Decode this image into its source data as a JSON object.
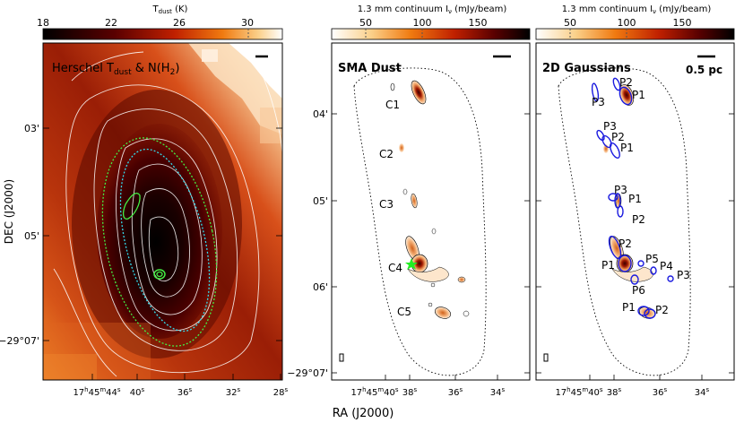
{
  "chart_data": [
    {
      "type": "heatmap",
      "id": "left",
      "title": "Herschel T_dust & N(H2)",
      "colorbar": {
        "label": "Tdust (K)",
        "ticks": [
          18,
          22,
          26,
          30
        ],
        "range": [
          18,
          32
        ],
        "cmap": "gist_heat"
      },
      "xlabel": "RA (J2000)",
      "ylabel": "DEC (J2000)",
      "xticks": [
        "17h45m44s",
        "40s",
        "36s",
        "32s",
        "28s"
      ],
      "yticks": [
        "03'",
        "05'",
        "-29°07'"
      ],
      "scalebar": "0.5 pc"
    },
    {
      "type": "heatmap",
      "id": "middle",
      "title": "SMA Dust",
      "colorbar": {
        "label": "1.3 mm continuum I_ν (mJy/beam)",
        "ticks": [
          50,
          100,
          150
        ],
        "range": [
          20,
          200
        ],
        "cmap": "gist_heat_r"
      },
      "xticks": [
        "17h45m40s",
        "38s",
        "36s",
        "34s"
      ],
      "yticks": [
        "04'",
        "05'",
        "06'",
        "-29°07'"
      ],
      "clumps": [
        "C1",
        "C2",
        "C3",
        "C4",
        "C5"
      ]
    },
    {
      "type": "heatmap",
      "id": "right",
      "title": "2D Gaussians",
      "colorbar": {
        "label": "1.3 mm continuum I_ν (mJy/beam)",
        "ticks": [
          50,
          100,
          150
        ],
        "range": [
          20,
          200
        ],
        "cmap": "gist_heat_r"
      },
      "xticks": [
        "17h45m40s",
        "38s",
        "36s",
        "34s"
      ],
      "scalebar": "0.5 pc",
      "sources": [
        {
          "group": "C1",
          "labels": [
            "P1",
            "P2",
            "P3"
          ]
        },
        {
          "group": "C2",
          "labels": [
            "P1",
            "P2",
            "P3"
          ]
        },
        {
          "group": "C3",
          "labels": [
            "P1",
            "P2",
            "P3"
          ]
        },
        {
          "group": "C4",
          "labels": [
            "P1",
            "P2",
            "P3",
            "P4",
            "P5",
            "P6"
          ]
        },
        {
          "group": "C5",
          "labels": [
            "P1",
            "P2"
          ]
        }
      ]
    }
  ],
  "labels": {
    "cb_left_title": "T",
    "cb_left_sub": "dust",
    "cb_left_unit": " (K)",
    "cb_mid_title": "1.3 mm continuum I",
    "cb_mid_sub": "ν",
    "cb_mid_unit": " (mJy/beam)",
    "cb_right_title": "1.3 mm continuum I",
    "cb_right_sub": "ν",
    "cb_right_unit": " (mJy/beam)",
    "left_title_a": "Herschel T",
    "left_title_sub": "dust",
    "left_title_b": " & N(H",
    "left_title_sub2": "2",
    "left_title_c": ")",
    "mid_title": "SMA Dust",
    "right_title": "2D Gaussians",
    "scalebar": "0.5 pc",
    "ylabel": "DEC (J2000)",
    "xlabel": "RA (J2000)",
    "cb_t18": "18",
    "cb_t22": "22",
    "cb_t26": "26",
    "cb_t30": "30",
    "cb_m50": "50",
    "cb_m100": "100",
    "cb_m150": "150",
    "cb_r50": "50",
    "cb_r100": "100",
    "cb_r150": "150",
    "ly03": "03'",
    "ly05": "05'",
    "ly07": "−29°07'",
    "lx_h": "17",
    "lx_hs": "h",
    "lx_m": "45",
    "lx_ms": "m",
    "lx_s": "44",
    "lx_ss": "s",
    "lx40": "40",
    "lx40s": "s",
    "lx36": "36",
    "lx36s": "s",
    "lx32": "32",
    "lx32s": "s",
    "lx28": "28",
    "lx28s": "s",
    "my04": "04'",
    "my05": "05'",
    "my06": "06'",
    "my07": "−29°07'",
    "mx_h": "17",
    "mx_hs": "h",
    "mx_m": "45",
    "mx_ms": "m",
    "mx_s": "40",
    "mx_ss": "s",
    "mx38": "38",
    "mx38s": "s",
    "mx36": "36",
    "mx36s": "s",
    "mx34": "34",
    "mx34s": "s",
    "rx_h": "17",
    "rx_hs": "h",
    "rx_m": "45",
    "rx_ms": "m",
    "rx_s": "40",
    "rx_ss": "s",
    "rx38": "38",
    "rx38s": "s",
    "rx36": "36",
    "rx36s": "s",
    "rx34": "34",
    "rx34s": "s",
    "C1": "C1",
    "C2": "C2",
    "C3": "C3",
    "C4": "C4",
    "C5": "C5",
    "c1p1": "P1",
    "c1p2": "P2",
    "c1p3": "P3",
    "c2p1": "P1",
    "c2p2": "P2",
    "c2p3": "P3",
    "c3p1": "P1",
    "c3p2": "P2",
    "c3p3": "P3",
    "c4p1": "P1",
    "c4p2": "P2",
    "c4p3": "P3",
    "c4p4": "P4",
    "c4p5": "P5",
    "c4p6": "P6",
    "c5p1": "P1",
    "c5p2": "P2"
  }
}
